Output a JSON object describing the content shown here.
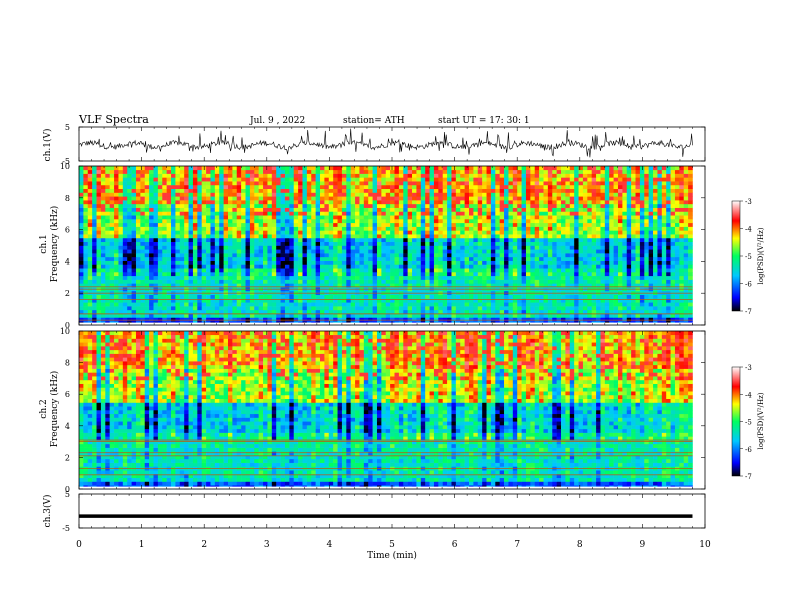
{
  "header": {
    "title": "VLF  Spectra",
    "date": "Jul.  9  , 2022",
    "station": "station= ATH",
    "start": "start  UT  =    17: 30: 1"
  },
  "chart_data": [
    {
      "type": "line",
      "name": "ch1-waveform",
      "ylabel": "ch.1(V)",
      "ylim": [
        -5,
        5
      ],
      "yticks": [
        "5",
        "-5"
      ],
      "xlim": [
        0,
        9.8
      ],
      "description_color": "#000000"
    },
    {
      "type": "heatmap",
      "name": "ch1-spectrogram",
      "ylabel": "ch.1\nFrequency  (kHz)",
      "ylabel_lines": [
        "ch.1",
        "Frequency  (kHz)"
      ],
      "ylim": [
        0,
        10
      ],
      "yticks": [
        "0",
        "2",
        "4",
        "6",
        "8",
        "10"
      ],
      "xlim": [
        0,
        9.8
      ],
      "colorbar": {
        "label": "log(PSD)(V²/Hz)",
        "ticks": [
          "-3",
          "-4",
          "-5",
          "-6",
          "-7"
        ],
        "range": [
          -7,
          -3
        ]
      }
    },
    {
      "type": "heatmap",
      "name": "ch2-spectrogram",
      "ylabel_lines": [
        "ch.2",
        "Frequency  (kHz)"
      ],
      "ylim": [
        0,
        10
      ],
      "yticks": [
        "0",
        "2",
        "4",
        "6",
        "8",
        "10"
      ],
      "xlim": [
        0,
        9.8
      ],
      "colorbar": {
        "label": "log(PSD)(V²/Hz)",
        "ticks": [
          "-3",
          "-4",
          "-5",
          "-6",
          "-7"
        ],
        "range": [
          -7,
          -3
        ]
      }
    },
    {
      "type": "line",
      "name": "ch3-waveform",
      "ylabel": "ch.3(V)",
      "ylim": [
        -5,
        5
      ],
      "yticks": [
        "5",
        "-5"
      ],
      "xlim": [
        0,
        9.8
      ],
      "constant_value": -1.5
    }
  ],
  "xaxis": {
    "label": "Time  (min)",
    "ticks": [
      "0",
      "1",
      "2",
      "3",
      "4",
      "5",
      "6",
      "7",
      "8",
      "9",
      "10"
    ],
    "range": [
      0,
      10
    ]
  },
  "colors": {
    "waveform": "#000000",
    "colormap": [
      "#000000",
      "#0000ff",
      "#00c8ff",
      "#00ff80",
      "#ffff00",
      "#ff0000",
      "#ffffff"
    ]
  }
}
